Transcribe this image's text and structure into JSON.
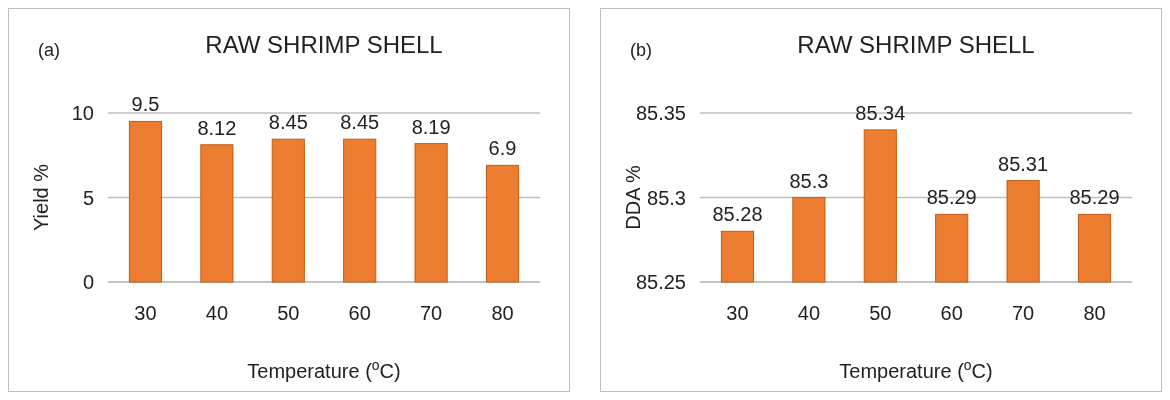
{
  "chart_data": [
    {
      "type": "bar",
      "title": "RAW SHRIMP SHELL",
      "xlabel": "Temperature ($^{o}$C)",
      "ylabel": "Yield %",
      "annotations": [
        "(a)"
      ],
      "categories": [
        "30",
        "40",
        "50",
        "60",
        "70",
        "80"
      ],
      "values": [
        9.5,
        8.12,
        8.45,
        8.45,
        8.19,
        6.9
      ],
      "color": "#ed7d31",
      "ylim": [
        0,
        10
      ],
      "yticks": [
        0,
        5,
        10
      ],
      "grid": "y",
      "data_labels": true
    },
    {
      "type": "bar",
      "title": "RAW SHRIMP SHELL",
      "xlabel": "Temperature ($^{o}$C)",
      "ylabel": "DDA %",
      "annotations": [
        "(b)"
      ],
      "categories": [
        "30",
        "40",
        "50",
        "60",
        "70",
        "80"
      ],
      "values": [
        85.28,
        85.3,
        85.34,
        85.29,
        85.31,
        85.29
      ],
      "color": "#ed7d31",
      "ylim": [
        85.25,
        85.35
      ],
      "yticks": [
        85.25,
        85.3,
        85.35
      ],
      "grid": "y",
      "data_labels": true
    }
  ]
}
